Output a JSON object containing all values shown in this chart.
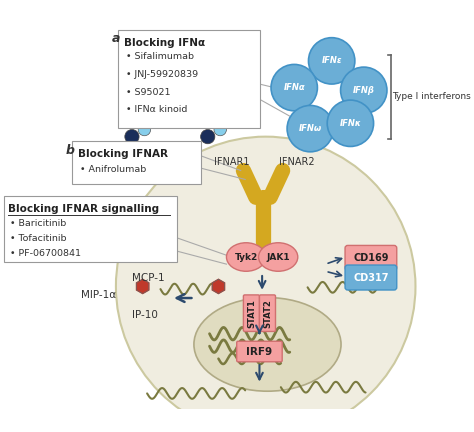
{
  "bg_color": "#ffffff",
  "cell_color": "#f0ede0",
  "cell_edge_color": "#ccc9a0",
  "nucleus_color": "#e0dcc0",
  "nucleus_edge_color": "#b0aa85",
  "ifn_circle_color": "#6baed6",
  "ifn_circle_edge": "#4292c6",
  "receptor_color": "#d4a820",
  "pink_color": "#f4a0a0",
  "pink_edge": "#d07070",
  "cd169_color": "#f4a0a0",
  "cd317_color": "#6baed6",
  "arrow_color": "#2c4a6e",
  "mcp1_color": "#c0392b",
  "mip1a_color": "#1a2e5a",
  "ip10_color": "#87ceeb",
  "box_edge_color": "#999999",
  "wavy_color": "#7a7a40",
  "line_color": "#aaaaaa",
  "label_a": "a",
  "label_b": "b",
  "title_blocking_ifna": "Blocking IFNα",
  "bullets_ifna": [
    "Sifalimumab",
    "JNJ-59920839",
    "S95021",
    "IFNα kinoid"
  ],
  "title_blocking_ifnar": "Blocking IFNAR",
  "bullets_ifnar": [
    "Anifrolumab"
  ],
  "title_blocking_signal": "Blocking IFNAR signalling",
  "bullets_signal": [
    "Baricitinib",
    "Tofacitinib",
    "PF-06700841"
  ],
  "ifn_labels": [
    "IFNε",
    "IFNβ",
    "IFNα",
    "IFNω",
    "IFNκ"
  ],
  "type_i_label": "Type I interferons",
  "ifnar1_label": "IFNAR1",
  "ifnar2_label": "IFNAR2",
  "tyk2_label": "Tyk2",
  "jak1_label": "JAK1",
  "stat1_label": "STAT1",
  "stat2_label": "STAT2",
  "irf9_label": "IRF9",
  "cd169_label": "CD169",
  "cd317_label": "CD317",
  "mcp1_label": "MCP-1",
  "mip1a_label": "MIP-1α",
  "ip10_label": "IP-10"
}
